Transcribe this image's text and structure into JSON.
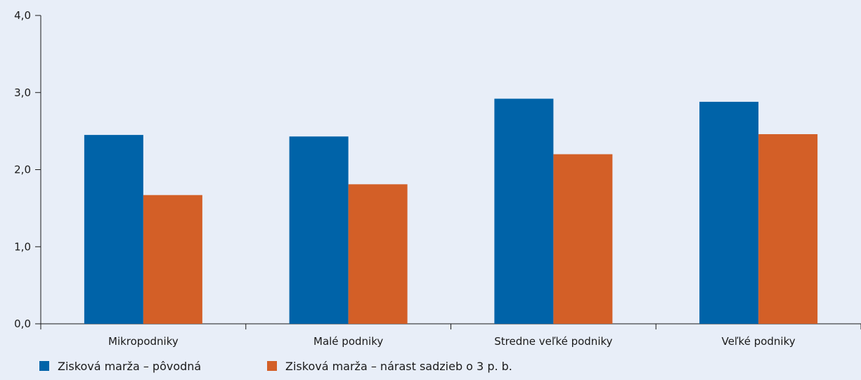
{
  "chart_data": {
    "type": "bar",
    "title": "",
    "xlabel": "",
    "ylabel": "",
    "categories": [
      "Mikropodniky",
      "Malé podniky",
      "Stredne veľké podniky",
      "Veľké podniky"
    ],
    "series": [
      {
        "name": "Zisková marža – pôvodná",
        "color": "#0063a8",
        "values": [
          2.45,
          2.43,
          2.92,
          2.88
        ]
      },
      {
        "name": "Zisková marža – nárast sadzieb o 3 p. b.",
        "color": "#d35f27",
        "values": [
          1.67,
          1.81,
          2.2,
          2.46
        ]
      }
    ],
    "ylim": [
      0,
      4
    ],
    "yticks": [
      "0,0",
      "1,0",
      "2,0",
      "3,0",
      "4,0"
    ],
    "grid": false,
    "legend_position": "bottom-left"
  }
}
